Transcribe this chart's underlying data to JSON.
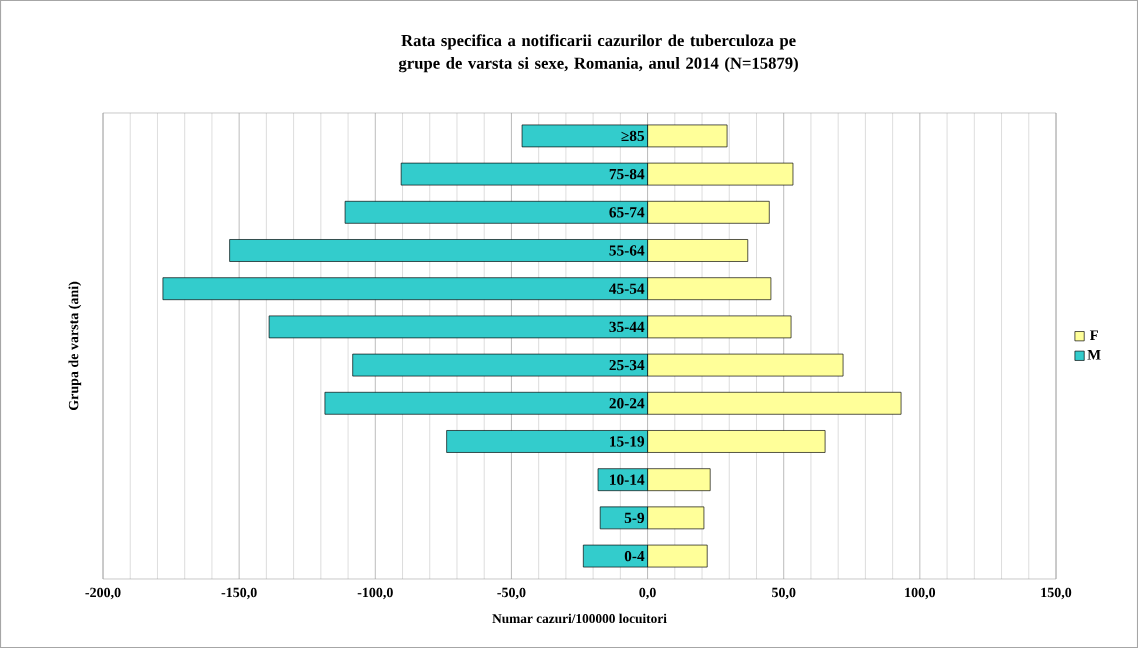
{
  "chart_data": {
    "type": "bar",
    "orientation": "horizontal",
    "title": "Rata specifica a notificarii cazurilor de tuberculoza pe grupe de varsta si sexe, Romania, anul 2014 (N=15879)",
    "xlabel": "Numar cazuri/100000 locuitori",
    "ylabel": "Grupa de varsta (ani)",
    "categories": [
      "≥85",
      "75-84",
      "65-74",
      "55-64",
      "45-54",
      "35-44",
      "25-34",
      "20-24",
      "15-19",
      "10-14",
      "5-9",
      "0-4"
    ],
    "series": [
      {
        "name": "F",
        "color": "#ffff99",
        "values": [
          29.2,
          53.4,
          44.7,
          36.8,
          45.3,
          52.7,
          71.8,
          93.1,
          65.2,
          23.0,
          20.7,
          21.9
        ]
      },
      {
        "name": "M",
        "color": "#33cccc",
        "values": [
          -46.1,
          -90.5,
          -111.1,
          -153.5,
          -178.0,
          -139.0,
          -108.3,
          -118.5,
          -73.8,
          -18.2,
          -17.4,
          -23.6
        ]
      }
    ],
    "xlim": [
      -200,
      150
    ],
    "xticks": [
      {
        "value": -200,
        "label": "-200,0"
      },
      {
        "value": -150,
        "label": "-150,0"
      },
      {
        "value": -100,
        "label": "-100,0"
      },
      {
        "value": -50,
        "label": "-50,0"
      },
      {
        "value": 0,
        "label": "0,0"
      },
      {
        "value": 50,
        "label": "50,0"
      },
      {
        "value": 100,
        "label": "100,0"
      },
      {
        "value": 150,
        "label": "150,0"
      }
    ],
    "grid": "x",
    "legend": "right",
    "stacked": true
  }
}
